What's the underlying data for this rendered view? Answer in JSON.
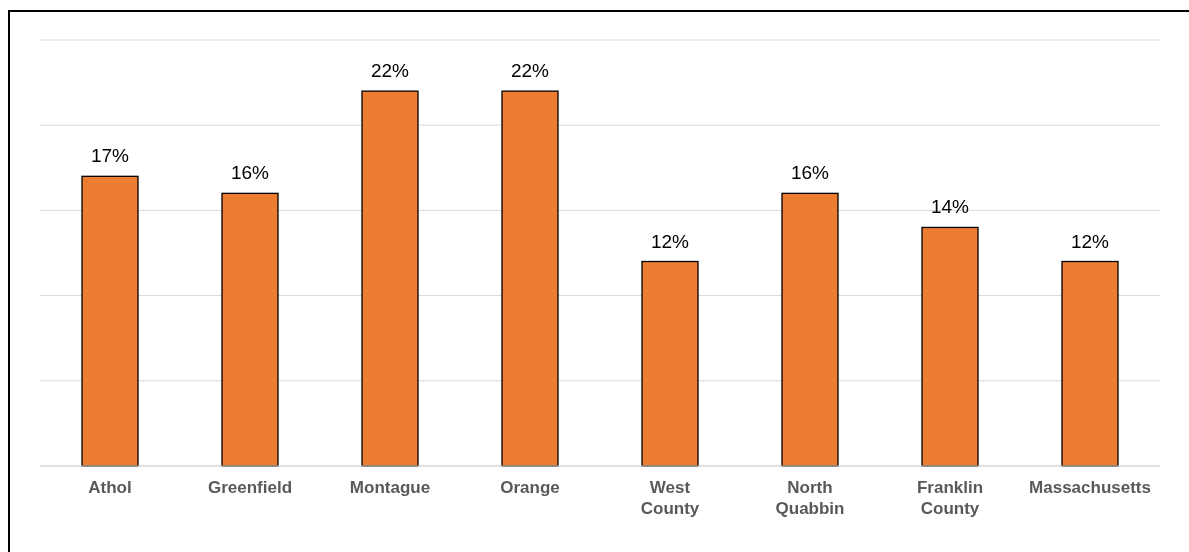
{
  "chart_data": {
    "type": "bar",
    "categories": [
      "Athol",
      "Greenfield",
      "Montague",
      "Orange",
      "West County",
      "North Quabbin",
      "Franklin County",
      "Massachusetts"
    ],
    "values": [
      17,
      16,
      22,
      22,
      12,
      16,
      14,
      12
    ],
    "color": "#ed7d31",
    "value_labels": [
      "17%",
      "16%",
      "22%",
      "22%",
      "12%",
      "16%",
      "14%",
      "12%"
    ],
    "grid": "y",
    "tick_labels": "x"
  }
}
